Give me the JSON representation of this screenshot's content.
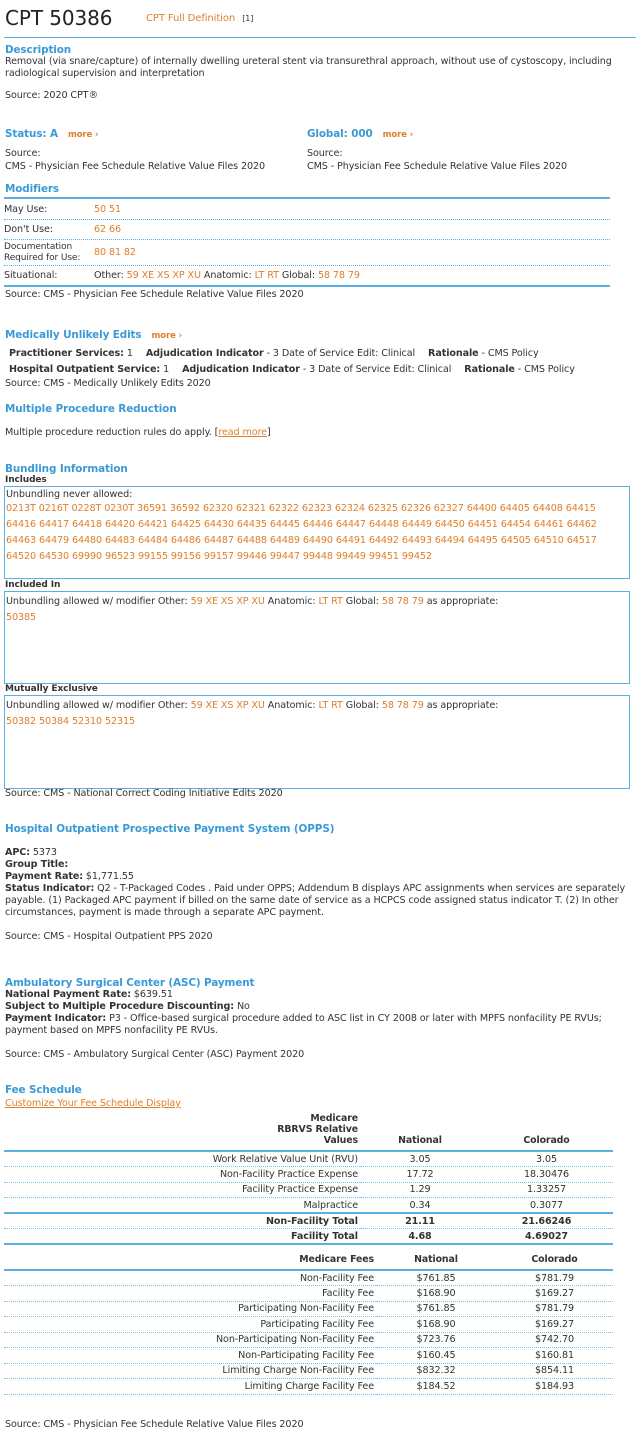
{
  "header": {
    "title": "CPT 50386",
    "definition_link": "CPT Full Definition",
    "definition_ref": "[1]"
  },
  "description": {
    "heading": "Description",
    "text": "Removal (via snare/capture) of internally dwelling ureteral stent via transurethral approach, without use of cystoscopy, including radiological supervision and interpretation",
    "source": "Source: 2020 CPT®"
  },
  "status": {
    "heading": "Status: A",
    "more": "more ›",
    "source_label": "Source:",
    "source": "CMS - Physician Fee Schedule Relative Value Files 2020"
  },
  "global": {
    "heading": "Global: 000",
    "more": "more ›",
    "source_label": "Source:",
    "source": "CMS - Physician Fee Schedule Relative Value Files 2020"
  },
  "modifiers": {
    "heading": "Modifiers",
    "may_use_label": "May Use:",
    "may_use": "50 51",
    "dont_use_label": "Don't Use:",
    "dont_use": "62 66",
    "doc_label": "Documentation Required for Use:",
    "doc": "80 81 82",
    "situational_label": "Situational:",
    "other_label": "Other:",
    "other": "59 XE XS XP XU",
    "anatomic_label": "Anatomic:",
    "anatomic": "LT RT",
    "global_label": "Global:",
    "global": "58 78 79",
    "source": "Source: CMS - Physician Fee Schedule Relative Value Files 2020"
  },
  "mue": {
    "heading": "Medically Unlikely Edits",
    "more": "more ›",
    "rows": [
      {
        "label": "Practitioner Services:",
        "value": "1",
        "adj_label": "Adjudication Indicator",
        "adj": "- 3 Date of Service Edit: Clinical",
        "rat_label": "Rationale",
        "rat": "- CMS Policy"
      },
      {
        "label": "Hospital Outpatient Service:",
        "value": "1",
        "adj_label": "Adjudication Indicator",
        "adj": "- 3 Date of Service Edit: Clinical",
        "rat_label": "Rationale",
        "rat": "- CMS Policy"
      }
    ],
    "source": "Source: CMS - Medically Unlikely Edits 2020"
  },
  "mpr": {
    "heading": "Multiple Procedure Reduction",
    "text": "Multiple procedure reduction rules do apply. [",
    "link": "read more",
    "close": "]"
  },
  "bundling": {
    "heading": "Bundling Information",
    "includes": {
      "label": "Includes",
      "intro": "Unbundling never allowed:",
      "codes": [
        "0213T",
        "0216T",
        "0228T",
        "0230T",
        "36591",
        "36592",
        "62320",
        "62321",
        "62322",
        "62323",
        "62324",
        "62325",
        "62326",
        "62327",
        "64400",
        "64405",
        "64408",
        "64415",
        "64416",
        "64417",
        "64418",
        "64420",
        "64421",
        "64425",
        "64430",
        "64435",
        "64445",
        "64446",
        "64447",
        "64448",
        "64449",
        "64450",
        "64451",
        "64454",
        "64461",
        "64462",
        "64463",
        "64479",
        "64480",
        "64483",
        "64484",
        "64486",
        "64487",
        "64488",
        "64489",
        "64490",
        "64491",
        "64492",
        "64493",
        "64494",
        "64495",
        "64505",
        "64510",
        "64517",
        "64520",
        "64530",
        "69990",
        "96523",
        "99155",
        "99156",
        "99157",
        "99446",
        "99447",
        "99448",
        "99449",
        "99451",
        "99452"
      ]
    },
    "included_in": {
      "label": "Included In",
      "intro": "Unbundling allowed w/ modifier Other:",
      "other": "59 XE XS XP XU",
      "anatomic_label": "Anatomic:",
      "anatomic": "LT RT",
      "global_label": "Global:",
      "global": "58 78 79",
      "suffix": "as appropriate:",
      "codes": [
        "50385"
      ]
    },
    "mutually_exclusive": {
      "label": "Mutually Exclusive",
      "intro": "Unbundling allowed w/ modifier Other:",
      "other": "59 XE XS XP XU",
      "anatomic_label": "Anatomic:",
      "anatomic": "LT RT",
      "global_label": "Global:",
      "global": "58 78 79",
      "suffix": "as appropriate:",
      "codes": [
        "50382",
        "50384",
        "52310",
        "52315"
      ]
    },
    "source": "Source: CMS - National Correct Coding Initiative Edits 2020"
  },
  "opps": {
    "heading": "Hospital Outpatient Prospective Payment System (OPPS)",
    "apc_label": "APC:",
    "apc": "5373",
    "group_label": "Group Title:",
    "rate_label": "Payment Rate:",
    "rate": "$1,771.55",
    "si_label": "Status Indicator:",
    "si": "Q2 - T-Packaged Codes . Paid under OPPS; Addendum B displays APC assignments when services are separately payable. (1) Packaged APC payment if billed on the same date of service as a HCPCS code assigned status indicator T. (2) In other circumstances, payment is made through a separate APC payment.",
    "source": "Source: CMS - Hospital Outpatient PPS 2020"
  },
  "asc": {
    "heading": "Ambulatory Surgical Center (ASC) Payment",
    "rate_label": "National Payment Rate:",
    "rate": "$639.51",
    "disc_label": "Subject to Multiple Procedure Discounting:",
    "disc": "No",
    "pi_label": "Payment Indicator:",
    "pi": "P3 - Office-based surgical procedure added to ASC list in CY 2008 or later with MPFS nonfacility PE RVUs; payment based on MPFS nonfacility PE RVUs.",
    "source": "Source: CMS - Ambulatory Surgical Center (ASC) Payment 2020"
  },
  "fee": {
    "heading": "Fee Schedule",
    "customize": "Customize Your Fee Schedule Display",
    "rvu": {
      "headers": [
        "Medicare RBRVS Relative Values",
        "National",
        "Colorado"
      ],
      "rows": [
        [
          "Work Relative Value Unit (RVU)",
          "3.05",
          "3.05"
        ],
        [
          "Non-Facility Practice Expense",
          "17.72",
          "18.30476"
        ],
        [
          "Facility Practice Expense",
          "1.29",
          "1.33257"
        ],
        [
          "Malpractice",
          "0.34",
          "0.3077"
        ]
      ],
      "totals": [
        [
          "Non-Facility Total",
          "21.11",
          "21.66246"
        ],
        [
          "Facility Total",
          "4.68",
          "4.69027"
        ]
      ]
    },
    "fees": {
      "headers": [
        "Medicare Fees",
        "National",
        "Colorado"
      ],
      "rows": [
        [
          "Non-Facility Fee",
          "$761.85",
          "$781.79"
        ],
        [
          "Facility Fee",
          "$168.90",
          "$169.27"
        ],
        [
          "Participating Non-Facility Fee",
          "$761.85",
          "$781.79"
        ],
        [
          "Participating Facility Fee",
          "$168.90",
          "$169.27"
        ],
        [
          "Non-Participating Non-Facility Fee",
          "$723.76",
          "$742.70"
        ],
        [
          "Non-Participating Facility Fee",
          "$160.45",
          "$160.81"
        ],
        [
          "Limiting Charge Non-Facility Fee",
          "$832.32",
          "$854.11"
        ],
        [
          "Limiting Charge Facility Fee",
          "$184.52",
          "$184.93"
        ]
      ]
    },
    "source": "Source: CMS - Physician Fee Schedule Relative Value Files 2020"
  },
  "colors": {
    "heading": "#3a9ad6",
    "link": "#dd7f2a",
    "rule": "#5ab0e0"
  }
}
